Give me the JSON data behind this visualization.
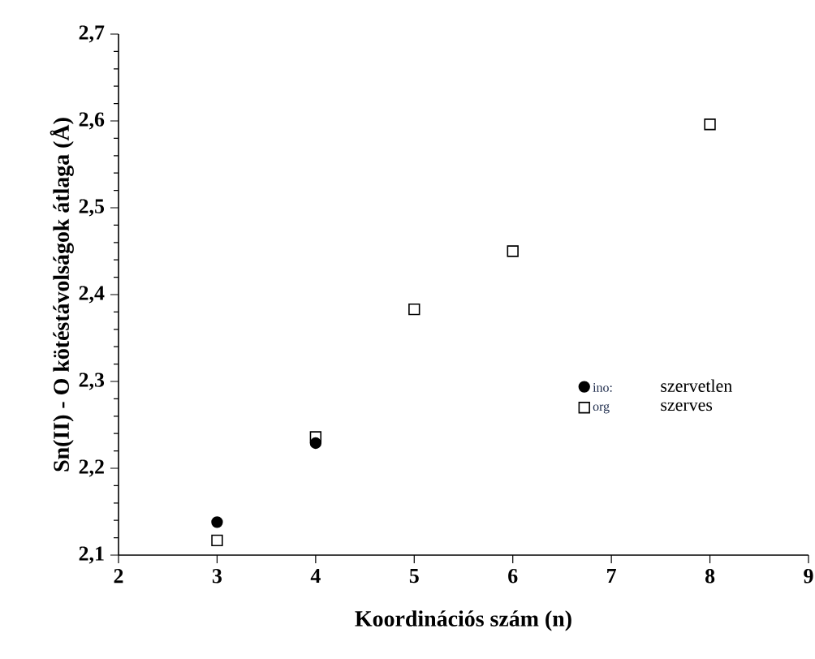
{
  "chart_data": {
    "type": "scatter",
    "xlabel": "Koordinációs szám (n)",
    "ylabel": "Sn(II) - O kötéstávolságok átlaga (Å)",
    "xlim": [
      2,
      9
    ],
    "xticks": [
      2,
      3,
      4,
      5,
      6,
      7,
      8,
      9
    ],
    "ylim": [
      2.1,
      2.7
    ],
    "yticks": [
      {
        "value": 2.1,
        "label": "2,1"
      },
      {
        "value": 2.2,
        "label": "2,2"
      },
      {
        "value": 2.3,
        "label": "2,3"
      },
      {
        "value": 2.4,
        "label": "2,4"
      },
      {
        "value": 2.5,
        "label": "2,5"
      },
      {
        "value": 2.6,
        "label": "2,6"
      },
      {
        "value": 2.7,
        "label": "2,7"
      }
    ],
    "series": [
      {
        "name": "ino:",
        "color": "#000000",
        "marker": "circle",
        "x": [
          3,
          4
        ],
        "values": [
          2.138,
          2.229
        ]
      },
      {
        "name": "org",
        "color": "#000000",
        "marker": "square",
        "x": [
          3,
          4,
          5,
          6,
          8
        ],
        "values": [
          2.117,
          2.236,
          2.383,
          2.45,
          2.596
        ]
      }
    ],
    "annotations": [
      "szervetlen",
      "szerves"
    ],
    "legend": "right",
    "grid": false
  }
}
